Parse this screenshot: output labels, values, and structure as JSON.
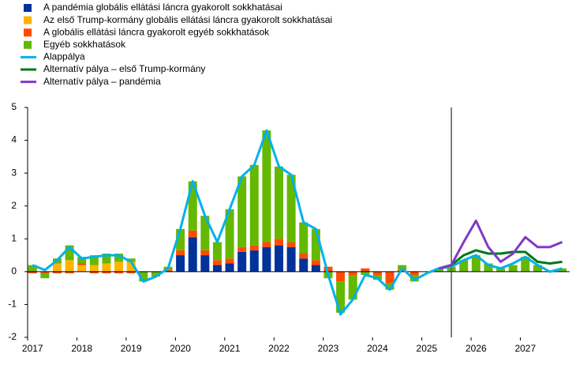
{
  "chart_data": {
    "type": "bar",
    "categories": [
      "2017",
      null,
      null,
      null,
      "2018",
      null,
      null,
      null,
      "2019",
      null,
      null,
      null,
      "2020",
      null,
      null,
      null,
      "2021",
      null,
      null,
      null,
      "2022",
      null,
      null,
      null,
      "2023",
      null,
      null,
      null,
      "2024",
      null,
      null,
      null,
      "2025",
      null,
      null,
      null,
      "2026",
      null,
      null,
      null,
      "2027",
      null,
      null,
      null
    ],
    "series": [
      {
        "name": "A pandémia globális ellátási láncra gyakorolt sokkhatásai",
        "kind": "bar",
        "color": "#003299",
        "values": [
          0,
          0,
          0,
          0,
          0,
          0,
          0,
          0,
          0,
          0,
          0,
          0,
          0.5,
          1.05,
          0.5,
          0.2,
          0.25,
          0.6,
          0.65,
          0.75,
          0.8,
          0.75,
          0.4,
          0.2,
          0,
          0,
          0,
          0,
          0,
          0,
          0,
          0,
          0,
          0,
          0,
          0,
          0,
          0,
          0,
          0,
          0,
          0,
          0,
          0
        ]
      },
      {
        "name": "Az első Trump-kormány globális ellátási láncra gyakorolt sokkhatásai",
        "kind": "bar",
        "color": "#FFB400",
        "values": [
          0,
          0,
          0.25,
          0.35,
          0.2,
          0.2,
          0.25,
          0.3,
          0.3,
          0,
          0,
          0,
          0,
          0,
          0,
          0,
          0,
          0,
          0,
          0,
          0,
          0,
          0,
          0,
          0,
          0,
          0,
          0,
          0,
          0,
          0,
          0,
          0,
          0,
          0,
          0,
          0,
          0,
          0,
          0,
          0,
          0,
          0,
          0
        ]
      },
      {
        "name": "A globális ellátási láncra gyakorolt egyéb sokkhatások",
        "kind": "bar",
        "color": "#FF4B00",
        "values": [
          -0.05,
          -0.05,
          -0.05,
          -0.05,
          0.05,
          -0.05,
          -0.05,
          -0.05,
          -0.05,
          0,
          0,
          0.05,
          0.15,
          0.2,
          0.15,
          0.15,
          0.15,
          0.15,
          0.15,
          0.15,
          0.2,
          0.15,
          0.15,
          0.15,
          0.15,
          -0.3,
          -0.1,
          0.1,
          -0.1,
          -0.35,
          0.05,
          -0.1,
          0,
          0,
          0,
          0,
          0,
          0,
          0,
          0,
          0,
          0,
          0,
          0
        ]
      },
      {
        "name": "Egyéb sokkhatások",
        "kind": "bar",
        "color": "#65B800",
        "values": [
          0.2,
          -0.15,
          0.15,
          0.45,
          0.2,
          0.3,
          0.3,
          0.25,
          0.1,
          -0.3,
          -0.15,
          0.1,
          0.65,
          1.5,
          1.05,
          0.55,
          1.5,
          2.15,
          2.45,
          3.4,
          2.2,
          2.05,
          0.95,
          0.95,
          -0.2,
          -0.95,
          -0.75,
          -0.1,
          -0.15,
          -0.2,
          0.15,
          -0.2,
          0,
          0.1,
          0.15,
          0.35,
          0.5,
          0.25,
          0.1,
          0.2,
          0.45,
          0.2,
          0,
          0.1
        ]
      },
      {
        "name": "Alappálya",
        "kind": "line",
        "color": "#00B1EA",
        "values": [
          0.2,
          0.05,
          0.35,
          0.75,
          0.4,
          0.45,
          0.5,
          0.5,
          0.3,
          -0.3,
          -0.15,
          0.1,
          1.3,
          2.75,
          1.7,
          0.9,
          1.9,
          2.9,
          3.25,
          4.3,
          3.2,
          2.95,
          1.5,
          1.3,
          -0.1,
          -1.3,
          -0.85,
          -0.1,
          -0.2,
          -0.55,
          0.1,
          -0.25,
          -0.05,
          0.1,
          0.15,
          0.35,
          0.5,
          0.2,
          0.1,
          0.25,
          0.45,
          0.2,
          0,
          0.1
        ]
      },
      {
        "name": "Alternatív pálya – első Trump-kormány",
        "kind": "line",
        "color": "#007816",
        "values": [
          null,
          null,
          null,
          null,
          null,
          null,
          null,
          null,
          null,
          null,
          null,
          null,
          null,
          null,
          null,
          null,
          null,
          null,
          null,
          null,
          null,
          null,
          null,
          null,
          null,
          null,
          null,
          null,
          null,
          null,
          null,
          null,
          null,
          0.1,
          0.2,
          0.5,
          0.65,
          0.55,
          0.55,
          0.6,
          0.6,
          0.3,
          0.25,
          0.3
        ]
      },
      {
        "name": "Alternatív pálya – pandémia",
        "kind": "line",
        "color": "#8139C6",
        "values": [
          null,
          null,
          null,
          null,
          null,
          null,
          null,
          null,
          null,
          null,
          null,
          null,
          null,
          null,
          null,
          null,
          null,
          null,
          null,
          null,
          null,
          null,
          null,
          null,
          null,
          null,
          null,
          null,
          null,
          null,
          null,
          null,
          null,
          0.1,
          0.2,
          0.9,
          1.55,
          0.75,
          0.3,
          0.55,
          1.05,
          0.75,
          0.75,
          0.9
        ]
      }
    ],
    "vline_index": 34,
    "ylim": [
      -2,
      5
    ],
    "yticks": [
      -2,
      -1,
      0,
      1,
      2,
      3,
      4,
      5
    ]
  }
}
